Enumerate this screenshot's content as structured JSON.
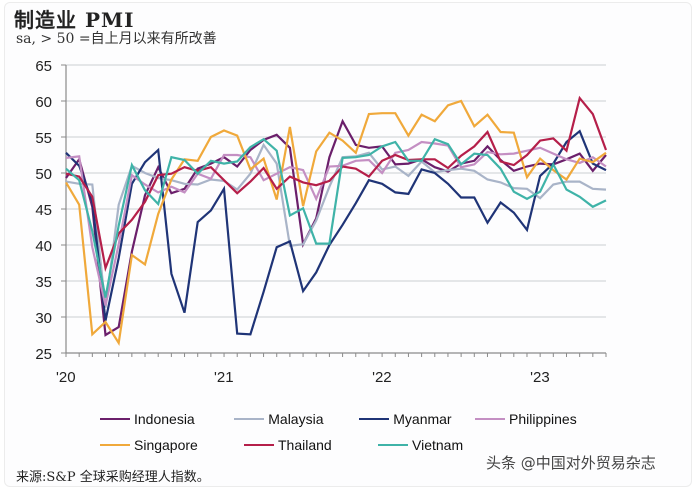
{
  "header": {
    "title": "制造业 PMI",
    "subtitle": "sa, > 50 =自上月以来有所改善"
  },
  "footer": {
    "source": "来源:S&P 全球采购经理人指数。",
    "watermark": "头条 @中国对外贸易杂志"
  },
  "legend": [
    {
      "name": "Indonesia",
      "color": "#6b1f6b"
    },
    {
      "name": "Malaysia",
      "color": "#a9b4c8"
    },
    {
      "name": "Myanmar",
      "color": "#1f3477"
    },
    {
      "name": "Philippines",
      "color": "#c48fc3"
    },
    {
      "name": "Singapore",
      "color": "#f0a93b"
    },
    {
      "name": "Thailand",
      "color": "#b51f4a"
    },
    {
      "name": "Vietnam",
      "color": "#3fb3a8"
    }
  ],
  "chart_data": {
    "type": "line",
    "title": "制造业 PMI",
    "subtitle": "sa, > 50 =自上月以来有所改善",
    "xlabel": "",
    "ylabel": "",
    "ylim": [
      25,
      65
    ],
    "yticks": [
      25,
      30,
      35,
      40,
      45,
      50,
      55,
      60,
      65
    ],
    "xtick_labels": [
      "'20",
      "'21",
      "'22",
      "'23"
    ],
    "grid": true,
    "legend_position": "bottom",
    "x": [
      "2020-01",
      "2020-02",
      "2020-03",
      "2020-04",
      "2020-05",
      "2020-06",
      "2020-07",
      "2020-08",
      "2020-09",
      "2020-10",
      "2020-11",
      "2020-12",
      "2021-01",
      "2021-02",
      "2021-03",
      "2021-04",
      "2021-05",
      "2021-06",
      "2021-07",
      "2021-08",
      "2021-09",
      "2021-10",
      "2021-11",
      "2021-12",
      "2022-01",
      "2022-02",
      "2022-03",
      "2022-04",
      "2022-05",
      "2022-06",
      "2022-07",
      "2022-08",
      "2022-09",
      "2022-10",
      "2022-11",
      "2022-12",
      "2023-01",
      "2023-02",
      "2023-03",
      "2023-04",
      "2023-05",
      "2023-06"
    ],
    "series": [
      {
        "name": "Indonesia",
        "color": "#6b1f6b",
        "values": [
          49.3,
          51.9,
          45.3,
          27.5,
          28.6,
          39.1,
          46.9,
          50.8,
          47.2,
          47.8,
          50.6,
          51.3,
          52.2,
          50.9,
          53.2,
          54.6,
          55.3,
          53.5,
          40.1,
          43.7,
          52.2,
          57.2,
          53.9,
          53.5,
          53.7,
          51.2,
          51.3,
          51.9,
          50.8,
          50.2,
          51.3,
          51.7,
          53.7,
          51.8,
          50.3,
          50.9,
          51.3,
          51.2,
          51.9,
          52.7,
          50.3,
          52.5
        ]
      },
      {
        "name": "Malaysia",
        "color": "#a9b4c8",
        "values": [
          48.8,
          48.5,
          48.4,
          31.3,
          45.6,
          51.0,
          50.0,
          49.3,
          49.0,
          48.5,
          48.4,
          49.1,
          48.9,
          47.7,
          49.9,
          53.9,
          51.3,
          39.9,
          40.1,
          43.4,
          48.1,
          52.2,
          52.3,
          52.8,
          50.5,
          50.9,
          49.6,
          51.6,
          50.1,
          50.4,
          50.6,
          50.3,
          49.1,
          48.7,
          47.9,
          47.8,
          46.5,
          48.4,
          48.8,
          48.8,
          47.8,
          47.7
        ]
      },
      {
        "name": "Myanmar",
        "color": "#1f3477",
        "values": [
          52.8,
          51.0,
          46.0,
          29.5,
          38.2,
          48.5,
          51.5,
          53.2,
          36.0,
          30.6,
          43.2,
          44.8,
          47.8,
          27.7,
          27.6,
          33.5,
          39.7,
          40.5,
          33.6,
          36.2,
          40.0,
          42.8,
          45.8,
          49.0,
          48.5,
          47.3,
          47.1,
          50.5,
          50.0,
          48.5,
          46.6,
          46.6,
          43.1,
          45.9,
          44.5,
          42.1,
          49.6,
          51.3,
          54.3,
          55.8,
          51.3,
          50.4
        ]
      },
      {
        "name": "Philippines",
        "color": "#c48fc3",
        "values": [
          52.1,
          52.3,
          39.7,
          31.6,
          40.1,
          49.7,
          48.4,
          47.3,
          48.1,
          47.3,
          49.9,
          49.2,
          52.5,
          52.5,
          52.2,
          49.0,
          49.9,
          50.8,
          50.4,
          46.4,
          50.9,
          51.0,
          51.7,
          51.8,
          50.0,
          52.8,
          53.2,
          54.3,
          54.1,
          53.8,
          50.8,
          51.2,
          52.9,
          52.6,
          52.7,
          53.1,
          53.5,
          52.7,
          51.9,
          51.4,
          52.2,
          50.9
        ]
      },
      {
        "name": "Singapore",
        "color": "#f0a93b",
        "values": [
          48.7,
          45.6,
          27.6,
          29.3,
          26.4,
          38.6,
          37.3,
          44.3,
          49.1,
          51.9,
          51.7,
          55.0,
          55.9,
          55.2,
          50.5,
          52.0,
          46.3,
          56.4,
          45.4,
          53.0,
          55.6,
          54.5,
          52.8,
          58.2,
          58.3,
          58.3,
          55.2,
          58.1,
          57.2,
          59.4,
          60.0,
          56.5,
          58.1,
          55.7,
          55.6,
          49.4,
          52.0,
          50.4,
          49.1,
          52.0,
          51.5,
          52.8
        ]
      },
      {
        "name": "Thailand",
        "color": "#b51f4a",
        "values": [
          49.9,
          49.5,
          46.7,
          36.8,
          41.6,
          43.5,
          46.0,
          49.7,
          49.9,
          50.8,
          50.3,
          50.8,
          49.0,
          47.2,
          48.8,
          50.7,
          47.8,
          49.5,
          48.7,
          48.3,
          48.9,
          50.9,
          50.6,
          49.5,
          51.7,
          52.5,
          51.8,
          51.9,
          51.9,
          50.7,
          52.4,
          53.7,
          55.7,
          51.6,
          51.1,
          52.5,
          54.5,
          54.8,
          53.1,
          60.4,
          58.2,
          53.2
        ]
      },
      {
        "name": "Vietnam",
        "color": "#3fb3a8",
        "values": [
          50.6,
          49.0,
          41.9,
          32.7,
          42.7,
          51.1,
          47.6,
          45.7,
          52.2,
          51.8,
          49.9,
          51.7,
          51.3,
          51.6,
          53.6,
          54.7,
          53.1,
          44.1,
          45.1,
          40.2,
          40.2,
          52.1,
          52.2,
          52.5,
          53.7,
          54.3,
          51.7,
          51.7,
          54.7,
          54.0,
          51.2,
          52.7,
          52.5,
          50.6,
          47.4,
          46.4,
          47.4,
          51.2,
          47.7,
          46.7,
          45.3,
          46.2
        ]
      }
    ]
  }
}
